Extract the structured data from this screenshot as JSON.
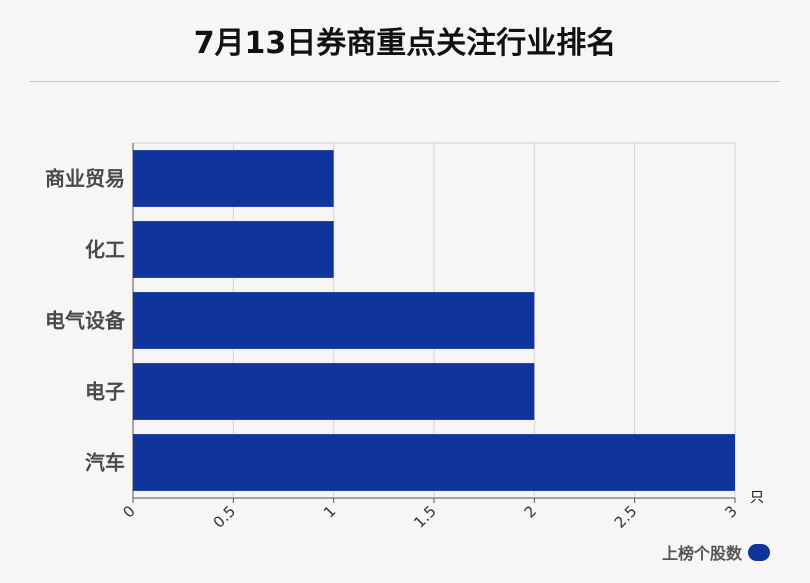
{
  "title": "7月13日券商重点关注行业排名",
  "chart_data": {
    "type": "bar",
    "orientation": "horizontal",
    "categories": [
      "商业贸易",
      "化工",
      "电气设备",
      "电子",
      "汽车"
    ],
    "series": [
      {
        "name": "上榜个股数",
        "values": [
          1,
          1,
          2,
          2,
          3
        ]
      }
    ],
    "xlim": [
      0,
      3
    ],
    "xticks": [
      "0",
      "0.5",
      "1",
      "1.5",
      "2",
      "2.5",
      "3"
    ],
    "unit": "只",
    "grid": true,
    "legend_position": "bottom-right",
    "bar_color": "#0f359c"
  }
}
